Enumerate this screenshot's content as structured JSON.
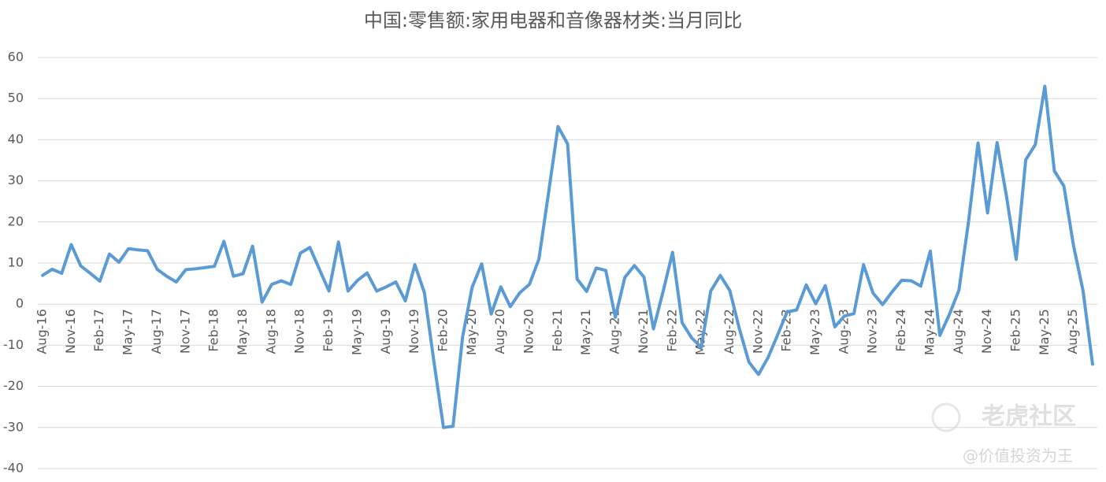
{
  "chart_data": {
    "type": "line",
    "title": "中国:零售额:家用电器和音像器材类:当月同比",
    "categories": [
      "Aug-16",
      null,
      null,
      "Nov-16",
      null,
      null,
      "Feb-17",
      null,
      null,
      "May-17",
      null,
      null,
      "Aug-17",
      null,
      null,
      "Nov-17",
      null,
      null,
      "Feb-18",
      null,
      null,
      "May-18",
      null,
      null,
      "Aug-18",
      null,
      null,
      "Nov-18",
      null,
      null,
      "Feb-19",
      null,
      null,
      "May-19",
      null,
      null,
      "Aug-19",
      null,
      null,
      "Nov-19",
      null,
      null,
      "Feb-20",
      null,
      null,
      "May-20",
      null,
      null,
      "Aug-20",
      null,
      null,
      "Nov-20",
      null,
      null,
      "Feb-21",
      null,
      null,
      "May-21",
      null,
      null,
      "Aug-21",
      null,
      null,
      "Nov-21",
      null,
      null,
      "Feb-22",
      null,
      null,
      "May-22",
      null,
      null,
      "Aug-22",
      null,
      null,
      "Nov-22",
      null,
      null,
      "Feb-23",
      null,
      null,
      "May-23",
      null,
      null,
      "Aug-23",
      null,
      null,
      "Nov-23",
      null,
      null,
      "Feb-24",
      null,
      null,
      "May-24",
      null,
      null,
      "Aug-24",
      null,
      null,
      "Nov-24",
      null,
      null,
      "Feb-25",
      null,
      null,
      "May-25",
      null,
      null,
      "Aug-25",
      null,
      null
    ],
    "series": [
      {
        "color": "#5b9bd5",
        "values": [
          7,
          8.5,
          7.5,
          14.5,
          9.3,
          7.5,
          5.6,
          12.2,
          10.2,
          13.5,
          13.2,
          13,
          8.5,
          6.8,
          5.4,
          8.4,
          8.6,
          8.9,
          9.2,
          15.3,
          6.8,
          7.4,
          14.1,
          0.5,
          4.8,
          5.7,
          4.8,
          12.4,
          13.8,
          8.5,
          3.2,
          15.1,
          3.2,
          5.8,
          7.6,
          3.2,
          4.2,
          5.4,
          0.8,
          9.6,
          2.8,
          -14,
          -30,
          -29.7,
          -8,
          4.1,
          9.8,
          -2.4,
          4.2,
          -0.6,
          2.8,
          4.8,
          11,
          27,
          43.2,
          39,
          6.1,
          3.1,
          8.8,
          8.2,
          -3.2,
          6.5,
          9.4,
          6.6,
          -6,
          3,
          12.6,
          -4.5,
          -8.2,
          -10.5,
          3.2,
          7,
          3.3,
          -6,
          -14.1,
          -17.1,
          -13,
          -7.5,
          -1.9,
          -1.4,
          4.7,
          0.1,
          4.5,
          -5.5,
          -2.9,
          -2.3,
          9.6,
          2.7,
          -0.1,
          3,
          5.8,
          5.7,
          4.4,
          12.9,
          -7.6,
          -2.5,
          3.4,
          20,
          39.2,
          22.2,
          39.3,
          26,
          10.9,
          35.1,
          38.8,
          53,
          32.4,
          28.7,
          14.3,
          3.3,
          -14.6
        ]
      }
    ],
    "ylim": [
      -40,
      60
    ],
    "yticks": [
      -40,
      -30,
      -20,
      -10,
      0,
      10,
      20,
      30,
      40,
      50,
      60
    ],
    "grid": true
  },
  "watermark": {
    "brand": "老虎社区",
    "author": "@价值投资为王"
  }
}
